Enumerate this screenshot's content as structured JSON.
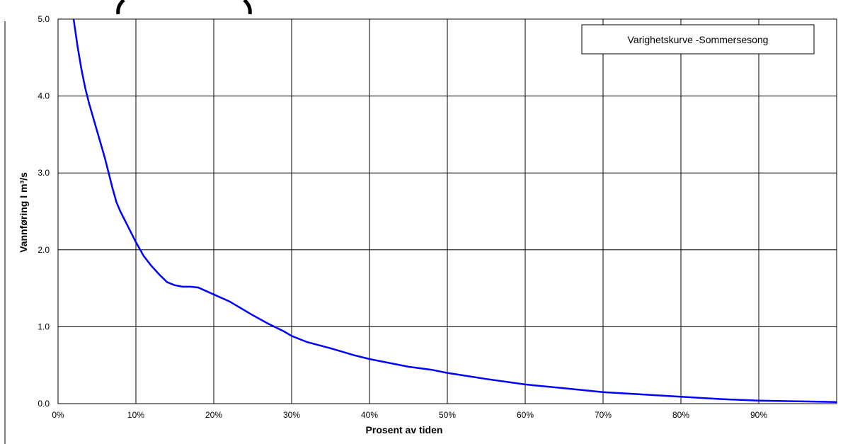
{
  "chart_data": {
    "type": "line",
    "xlabel": "Prosent av tiden",
    "ylabel": "Vannføring I m³/s",
    "xlim": [
      0,
      100
    ],
    "ylim": [
      0,
      5
    ],
    "grid": true,
    "legend_position": "top-right",
    "x_ticks": [
      0,
      10,
      20,
      30,
      40,
      50,
      60,
      70,
      80,
      90
    ],
    "x_tick_labels": [
      "0%",
      "10%",
      "20%",
      "30%",
      "40%",
      "50%",
      "60%",
      "70%",
      "80%",
      "90%"
    ],
    "y_ticks": [
      0,
      1,
      2,
      3,
      4,
      5
    ],
    "y_tick_labels": [
      "0.0",
      "1.0",
      "2.0",
      "3.0",
      "4.0",
      "5.0"
    ],
    "series": [
      {
        "name": "Varighetskurve -Sommersesong",
        "color": "#0000ff",
        "x": [
          2,
          2.5,
          3,
          3.5,
          4,
          5,
          6,
          6.5,
          7,
          7.5,
          8,
          9,
          10,
          11,
          12,
          13,
          14,
          15,
          16,
          17,
          18,
          20,
          22,
          23,
          25,
          27,
          29,
          30,
          32,
          35,
          38,
          40,
          42,
          45,
          48,
          50,
          55,
          60,
          65,
          70,
          75,
          80,
          85,
          90,
          95,
          100
        ],
        "values": [
          5.0,
          4.65,
          4.35,
          4.1,
          3.9,
          3.55,
          3.2,
          3.0,
          2.8,
          2.62,
          2.5,
          2.3,
          2.1,
          1.92,
          1.79,
          1.68,
          1.58,
          1.54,
          1.52,
          1.52,
          1.51,
          1.42,
          1.33,
          1.27,
          1.15,
          1.04,
          0.94,
          0.88,
          0.8,
          0.72,
          0.63,
          0.58,
          0.54,
          0.48,
          0.44,
          0.4,
          0.32,
          0.25,
          0.2,
          0.15,
          0.12,
          0.09,
          0.06,
          0.04,
          0.03,
          0.02
        ]
      }
    ]
  }
}
